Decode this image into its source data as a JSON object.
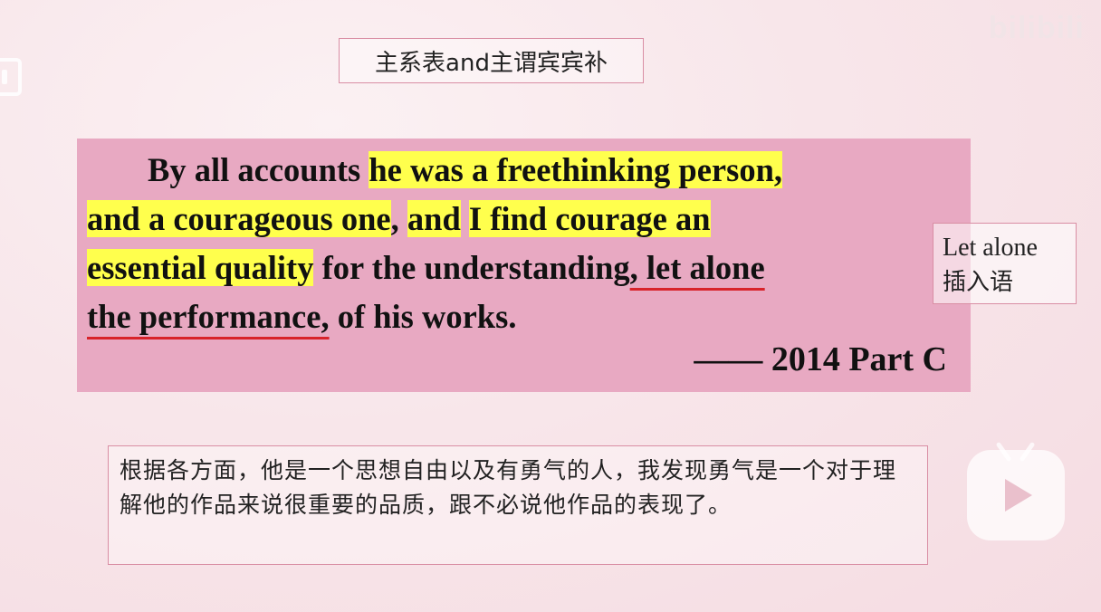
{
  "watermark": "bilibili",
  "title": "主系表and主谓宾宾补",
  "quote": {
    "line1": {
      "indent": "By all accounts ",
      "hl": "he was a freethinking person,"
    },
    "line2": {
      "hl1": "and a courageous one",
      "comma": ", ",
      "hl2": "and",
      "space": " ",
      "hl3": "I find courage an"
    },
    "line3": {
      "hl": "essential quality",
      "mid": " for the understanding",
      "ul": ", let alone"
    },
    "line4": {
      "ul": "the performance,",
      "rest": " of his works."
    },
    "source": "—— 2014 Part C"
  },
  "note": {
    "en": "Let alone",
    "zh": "插入语"
  },
  "translation": "根据各方面，他是一个思想自由以及有勇气的人，我发现勇气是一个对于理解他的作品来说很重要的品质，跟不必说他作品的表现了。",
  "icons": {
    "logo": "tv-logo-icon",
    "play": "play-icon"
  }
}
